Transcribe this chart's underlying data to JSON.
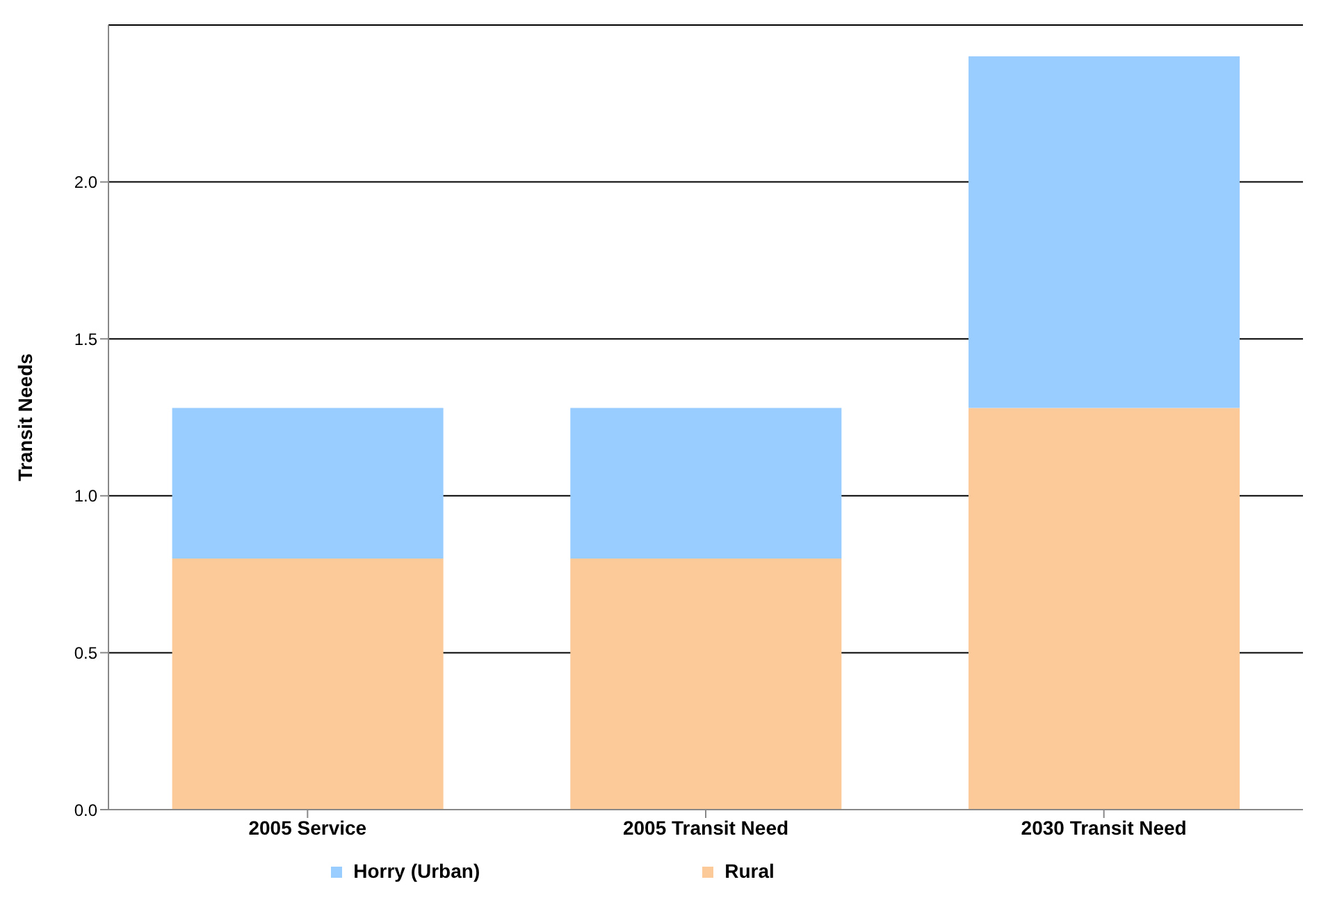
{
  "chart_data": {
    "type": "bar",
    "ylabel": "Transit Needs",
    "categories": [
      "2005 Service",
      "2005 Transit Need",
      "2030 Transit Need"
    ],
    "stacked": true,
    "series": [
      {
        "name": "Rural",
        "color": "#fbca98",
        "values": [
          0.8,
          0.8,
          1.28
        ]
      },
      {
        "name": "Horry (Urban)",
        "color": "#99ccff",
        "values": [
          0.48,
          0.48,
          1.12
        ]
      }
    ],
    "ylim": [
      0,
      2.5
    ],
    "yticks": [
      {
        "value": 0,
        "label": "0.0"
      },
      {
        "value": 0.5,
        "label": "0.5"
      },
      {
        "value": 1,
        "label": "1.0"
      },
      {
        "value": 1.5,
        "label": "1.5"
      },
      {
        "value": 2,
        "label": "2.0"
      }
    ],
    "grid": "y",
    "legend": "bottom"
  }
}
